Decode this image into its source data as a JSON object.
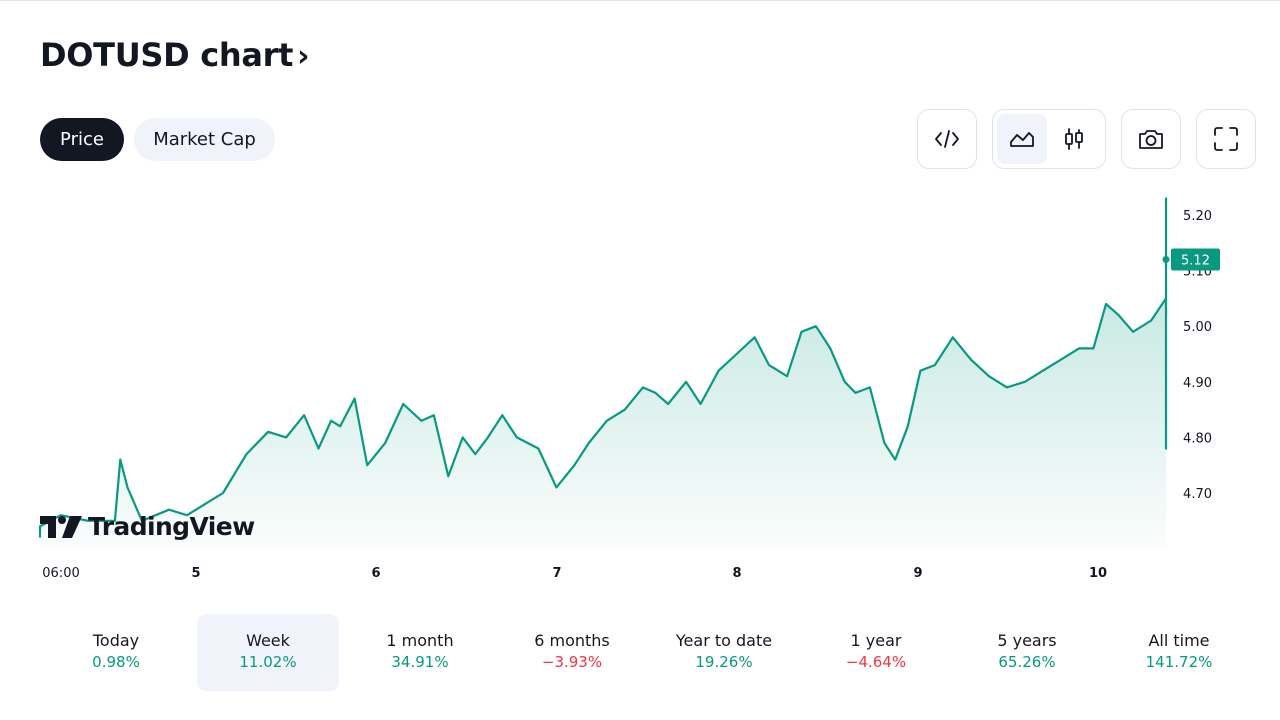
{
  "header": {
    "title": "DOTUSD chart",
    "chevron": "›"
  },
  "segments": [
    {
      "label": "Price",
      "active": true
    },
    {
      "label": "Market Cap",
      "active": false
    }
  ],
  "toolbar": {
    "embed_icon": "code-icon",
    "area_icon": "area-chart-icon",
    "candles_icon": "candlestick-icon",
    "snapshot_icon": "camera-icon",
    "fullscreen_icon": "fullscreen-icon",
    "active_chart_style": "area"
  },
  "branding": {
    "logo_text": "TradingView"
  },
  "colors": {
    "accent": "#089981",
    "negative": "#f23645",
    "text": "#131722",
    "muted_bg": "#f0f3fa"
  },
  "chart_data": {
    "type": "area",
    "title": "",
    "symbol": "DOTUSD",
    "x_ticks": [
      "06:00",
      "5",
      "6",
      "7",
      "8",
      "9",
      "10"
    ],
    "y_ticks": [
      "4.70",
      "4.80",
      "4.90",
      "5.00",
      "5.10",
      "5.20"
    ],
    "ylim": [
      4.62,
      5.25
    ],
    "last_price": "5.12",
    "grid": false,
    "series": [
      {
        "values": [
          [
            0.0,
            4.62
          ],
          [
            0.12,
            4.64
          ],
          [
            0.25,
            4.66
          ],
          [
            0.4,
            4.65
          ],
          [
            0.55,
            4.65
          ],
          [
            0.58,
            4.76
          ],
          [
            0.62,
            4.71
          ],
          [
            0.7,
            4.65
          ],
          [
            0.85,
            4.67
          ],
          [
            0.95,
            4.66
          ],
          [
            1.05,
            4.68
          ],
          [
            1.15,
            4.7
          ],
          [
            1.28,
            4.77
          ],
          [
            1.4,
            4.81
          ],
          [
            1.5,
            4.8
          ],
          [
            1.6,
            4.84
          ],
          [
            1.68,
            4.78
          ],
          [
            1.75,
            4.83
          ],
          [
            1.8,
            4.82
          ],
          [
            1.88,
            4.87
          ],
          [
            1.95,
            4.75
          ],
          [
            2.05,
            4.79
          ],
          [
            2.15,
            4.86
          ],
          [
            2.25,
            4.83
          ],
          [
            2.32,
            4.84
          ],
          [
            2.4,
            4.73
          ],
          [
            2.48,
            4.8
          ],
          [
            2.55,
            4.77
          ],
          [
            2.62,
            4.8
          ],
          [
            2.7,
            4.84
          ],
          [
            2.78,
            4.8
          ],
          [
            2.9,
            4.78
          ],
          [
            3.0,
            4.71
          ],
          [
            3.1,
            4.75
          ],
          [
            3.18,
            4.79
          ],
          [
            3.28,
            4.83
          ],
          [
            3.38,
            4.85
          ],
          [
            3.48,
            4.89
          ],
          [
            3.55,
            4.88
          ],
          [
            3.62,
            4.86
          ],
          [
            3.72,
            4.9
          ],
          [
            3.8,
            4.86
          ],
          [
            3.9,
            4.92
          ],
          [
            4.0,
            4.95
          ],
          [
            4.1,
            4.98
          ],
          [
            4.18,
            4.93
          ],
          [
            4.28,
            4.91
          ],
          [
            4.36,
            4.99
          ],
          [
            4.44,
            5.0
          ],
          [
            4.52,
            4.96
          ],
          [
            4.6,
            4.9
          ],
          [
            4.66,
            4.88
          ],
          [
            4.74,
            4.89
          ],
          [
            4.82,
            4.79
          ],
          [
            4.88,
            4.76
          ],
          [
            4.95,
            4.82
          ],
          [
            5.02,
            4.92
          ],
          [
            5.1,
            4.93
          ],
          [
            5.2,
            4.98
          ],
          [
            5.3,
            4.94
          ],
          [
            5.4,
            4.91
          ],
          [
            5.5,
            4.89
          ],
          [
            5.6,
            4.9
          ],
          [
            5.7,
            4.92
          ],
          [
            5.8,
            4.94
          ],
          [
            5.9,
            4.96
          ],
          [
            5.98,
            4.96
          ],
          [
            6.05,
            5.04
          ],
          [
            6.12,
            5.02
          ],
          [
            6.2,
            4.99
          ],
          [
            6.3,
            5.01
          ],
          [
            6.4,
            5.05
          ],
          [
            6.5,
            5.04
          ],
          [
            6.6,
            5.07
          ],
          [
            6.7,
            5.06
          ],
          [
            6.8,
            5.09
          ],
          [
            6.9,
            5.12
          ],
          [
            7.0,
            5.13
          ],
          [
            7.1,
            5.14
          ],
          [
            7.2,
            5.12
          ],
          [
            7.3,
            5.13
          ],
          [
            7.4,
            5.14
          ],
          [
            7.48,
            5.1
          ],
          [
            7.56,
            5.13
          ],
          [
            7.62,
            5.16
          ],
          [
            7.66,
            5.23
          ],
          [
            7.7,
            5.15
          ],
          [
            7.73,
            4.78
          ],
          [
            7.78,
            4.9
          ],
          [
            7.82,
            4.95
          ],
          [
            7.88,
            4.88
          ],
          [
            7.94,
            4.85
          ],
          [
            8.0,
            4.88
          ],
          [
            8.06,
            4.84
          ],
          [
            8.1,
            4.87
          ],
          [
            8.16,
            4.92
          ],
          [
            8.22,
            5.0
          ],
          [
            8.28,
            5.1
          ],
          [
            8.34,
            5.14
          ],
          [
            8.4,
            5.18
          ],
          [
            8.46,
            5.19
          ],
          [
            8.52,
            5.15
          ],
          [
            8.58,
            5.12
          ],
          [
            8.64,
            5.13
          ],
          [
            8.7,
            5.14
          ],
          [
            8.76,
            5.12
          ]
        ]
      }
    ]
  },
  "periods": [
    {
      "label": "Today",
      "value": "0.98%",
      "sign": "pos",
      "active": false
    },
    {
      "label": "Week",
      "value": "11.02%",
      "sign": "pos",
      "active": true
    },
    {
      "label": "1 month",
      "value": "34.91%",
      "sign": "pos",
      "active": false
    },
    {
      "label": "6 months",
      "value": "−3.93%",
      "sign": "neg",
      "active": false
    },
    {
      "label": "Year to date",
      "value": "19.26%",
      "sign": "pos",
      "active": false
    },
    {
      "label": "1 year",
      "value": "−4.64%",
      "sign": "neg",
      "active": false
    },
    {
      "label": "5 years",
      "value": "65.26%",
      "sign": "pos",
      "active": false
    },
    {
      "label": "All time",
      "value": "141.72%",
      "sign": "pos",
      "active": false
    }
  ]
}
